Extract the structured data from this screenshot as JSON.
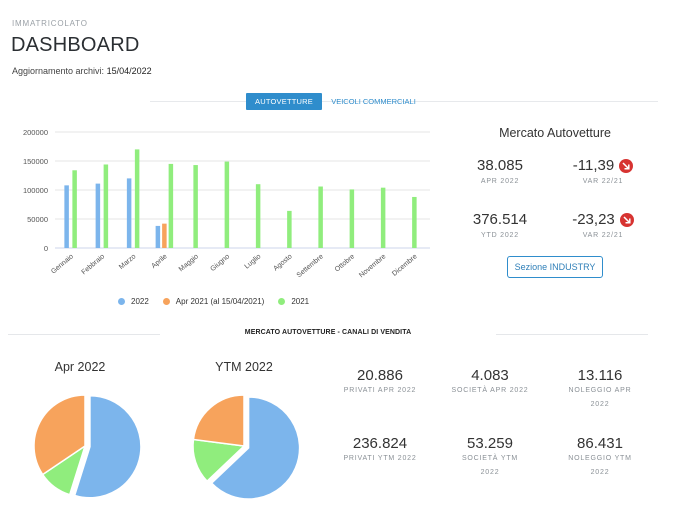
{
  "header": {
    "subtitle": "IMMATRICOLATO",
    "title": "DASHBOARD",
    "updated_label": "Aggiornamento archivi:",
    "updated_value": "15/04/2022"
  },
  "tabs": [
    {
      "label": "AUTOVETTURE",
      "active": true
    },
    {
      "label": "VEICOLI COMMERCIALI",
      "active": false
    }
  ],
  "chart_data": [
    {
      "type": "bar",
      "categories": [
        "Gennaio",
        "Febbraio",
        "Marzo",
        "Aprile",
        "Maggio",
        "Giugno",
        "Luglio",
        "Agosto",
        "Settembre",
        "Ottobre",
        "Novembre",
        "Dicembre"
      ],
      "series": [
        {
          "name": "2022",
          "color": "#7cb5ec",
          "values": [
            108000,
            111000,
            120000,
            38085,
            null,
            null,
            null,
            null,
            null,
            null,
            null,
            null
          ]
        },
        {
          "name": "Apr 2021 (al 15/04/2021)",
          "color": "#f7a35c",
          "values": [
            null,
            null,
            null,
            42000,
            null,
            null,
            null,
            null,
            null,
            null,
            null,
            null
          ]
        },
        {
          "name": "2021",
          "color": "#90ed7d",
          "values": [
            134000,
            144000,
            170000,
            145000,
            143000,
            149000,
            110000,
            64000,
            106000,
            101000,
            104000,
            88000
          ]
        }
      ],
      "yticks": [
        "200000",
        "150000",
        "100000",
        "50000",
        "0"
      ],
      "ylim": [
        0,
        200000
      ],
      "legend": "bottom",
      "grid": true
    },
    {
      "type": "pie",
      "title": "Apr 2022",
      "labels": [
        "Privati",
        "Società",
        "Noleggio"
      ],
      "values": [
        20886,
        4083,
        13116
      ],
      "colors": [
        "#7cb5ec",
        "#90ed7d",
        "#f7a35c"
      ]
    },
    {
      "type": "pie",
      "title": "YTM 2022",
      "labels": [
        "Privati",
        "Società",
        "Noleggio"
      ],
      "values": [
        236824,
        53259,
        86431
      ],
      "colors": [
        "#7cb5ec",
        "#90ed7d",
        "#f7a35c"
      ]
    }
  ],
  "market": {
    "title": "Mercato Autovetture",
    "apr_value": "38.085",
    "apr_label": "APR 2022",
    "var_apr_value": "-11,39",
    "var_apr_label": "VAR 22/21",
    "ytd_value": "376.514",
    "ytd_label": "YTD 2022",
    "var_ytd_value": "-23,23",
    "var_ytd_label": "VAR 22/21",
    "industry_button": "Sezione INDUSTRY",
    "down_color": "#d73331"
  },
  "canali": {
    "title": "MERCATO AUTOVETTURE - CANALI DI VENDITA",
    "stats": [
      {
        "value": "20.886",
        "label": "PRIVATI APR 2022"
      },
      {
        "value": "4.083",
        "label": "SOCIETÀ APR 2022"
      },
      {
        "value": "13.116",
        "label": "NOLEGGIO APR 2022"
      },
      {
        "value": "236.824",
        "label": "PRIVATI YTM 2022"
      },
      {
        "value": "53.259",
        "label": "SOCIETÀ YTM 2022"
      },
      {
        "value": "86.431",
        "label": "NOLEGGIO YTM 2022"
      }
    ]
  },
  "colors": {
    "accent": "#2f8dcc"
  }
}
